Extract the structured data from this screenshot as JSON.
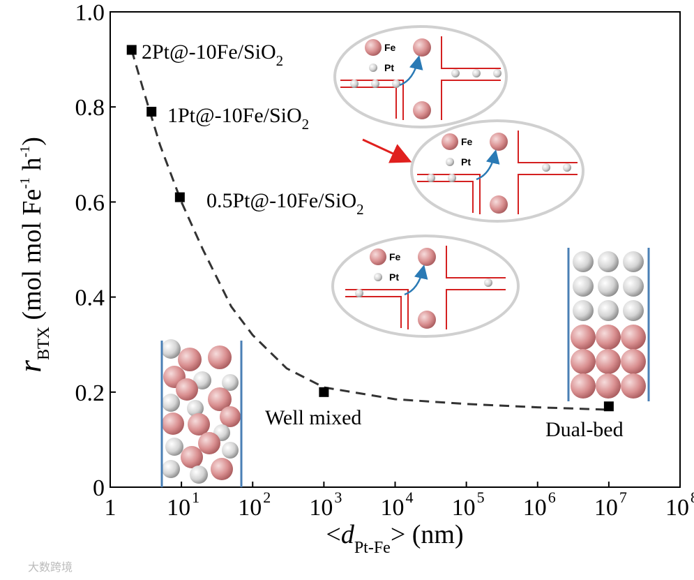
{
  "chart_data": {
    "type": "scatter",
    "x_label": {
      "parts": [
        "<",
        "d",
        "Pt-Fe",
        "> (nm)"
      ]
    },
    "y_label": {
      "parts": [
        "r",
        "BTX",
        " (mol mol Fe",
        "-1",
        " h",
        "-1",
        ")"
      ]
    },
    "xlog": true,
    "xlim": [
      1,
      100000000
    ],
    "ylim": [
      0,
      1
    ],
    "xticks": [
      1,
      {
        "value": 10,
        "label": "10",
        "exp": "1"
      },
      {
        "value": 100,
        "label": "10",
        "exp": "2"
      },
      {
        "value": 1000,
        "label": "10",
        "exp": "3"
      },
      {
        "value": 10000,
        "label": "10",
        "exp": "4"
      },
      {
        "value": 100000,
        "label": "10",
        "exp": "5"
      },
      {
        "value": 1000000,
        "label": "10",
        "exp": "6"
      },
      {
        "value": 10000000,
        "label": "10",
        "exp": "7"
      },
      {
        "value": 100000000,
        "label": "10",
        "exp": "8"
      }
    ],
    "yticks": [
      0,
      0.2,
      0.4,
      0.6,
      0.8,
      {
        "value": 1,
        "label": "1.0"
      }
    ],
    "series": [
      {
        "color": "#000000",
        "x": [
          2,
          3.8,
          9.5,
          1000,
          10000000
        ],
        "values": [
          0.92,
          0.79,
          0.61,
          0.2,
          0.17
        ]
      },
      {
        "color": "#333333",
        "dashed": true,
        "x": [
          2,
          3,
          5,
          10,
          20,
          50,
          100,
          300,
          1000,
          10000,
          100000,
          1000000,
          10000000
        ],
        "values": [
          0.92,
          0.83,
          0.72,
          0.6,
          0.5,
          0.38,
          0.32,
          0.25,
          0.21,
          0.185,
          0.175,
          0.168,
          0.163
        ]
      }
    ],
    "annotations": [
      {
        "text": "2Pt@-10Fe/SiO",
        "sub": "2"
      },
      {
        "text": "1Pt@-10Fe/SiO",
        "sub": "2"
      },
      {
        "text": "0.5Pt@-10Fe/SiO",
        "sub": "2"
      },
      {
        "text": "Well mixed"
      },
      {
        "text": "Dual-bed"
      }
    ],
    "insets": [
      {
        "labels": [
          "Fe",
          "Pt"
        ]
      },
      {
        "labels": [
          "Fe",
          "Pt"
        ]
      },
      {
        "labels": [
          "Fe",
          "Pt"
        ]
      }
    ],
    "watermark": "大数跨境"
  }
}
